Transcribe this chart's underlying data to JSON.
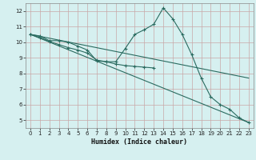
{
  "xlabel": "Humidex (Indice chaleur)",
  "background_color": "#d6f0f0",
  "plot_bg_color": "#d6f0f0",
  "grid_color_major": "#c8b8b8",
  "grid_color_minor": "#c8d8d8",
  "line_color": "#2a6b60",
  "xlim": [
    -0.5,
    23.5
  ],
  "ylim": [
    4.5,
    12.5
  ],
  "yticks": [
    5,
    6,
    7,
    8,
    9,
    10,
    11,
    12
  ],
  "xticks": [
    0,
    1,
    2,
    3,
    4,
    5,
    6,
    7,
    8,
    9,
    10,
    11,
    12,
    13,
    14,
    15,
    16,
    17,
    18,
    19,
    20,
    21,
    22,
    23
  ],
  "series_peaked": {
    "x": [
      0,
      1,
      2,
      3,
      4,
      5,
      6,
      7,
      8,
      9,
      10,
      11,
      12,
      13,
      14,
      15,
      16,
      17,
      18,
      19,
      20,
      21,
      22,
      23
    ],
    "y": [
      10.5,
      10.4,
      10.1,
      10.1,
      10.0,
      9.75,
      9.5,
      8.8,
      8.75,
      8.75,
      9.6,
      10.5,
      10.8,
      11.15,
      12.2,
      11.5,
      10.5,
      9.2,
      7.7,
      6.5,
      6.0,
      5.7,
      5.15,
      4.85
    ]
  },
  "series_declining": {
    "x": [
      0,
      1,
      2,
      3,
      4,
      5,
      6,
      7,
      8,
      9,
      10,
      11,
      12,
      13
    ],
    "y": [
      10.5,
      10.3,
      10.05,
      9.85,
      9.65,
      9.5,
      9.3,
      8.85,
      8.75,
      8.6,
      8.5,
      8.45,
      8.4,
      8.35
    ]
  },
  "series_line1": {
    "x": [
      0,
      23
    ],
    "y": [
      10.5,
      7.7
    ]
  },
  "series_line2": {
    "x": [
      0,
      23
    ],
    "y": [
      10.5,
      4.85
    ]
  }
}
